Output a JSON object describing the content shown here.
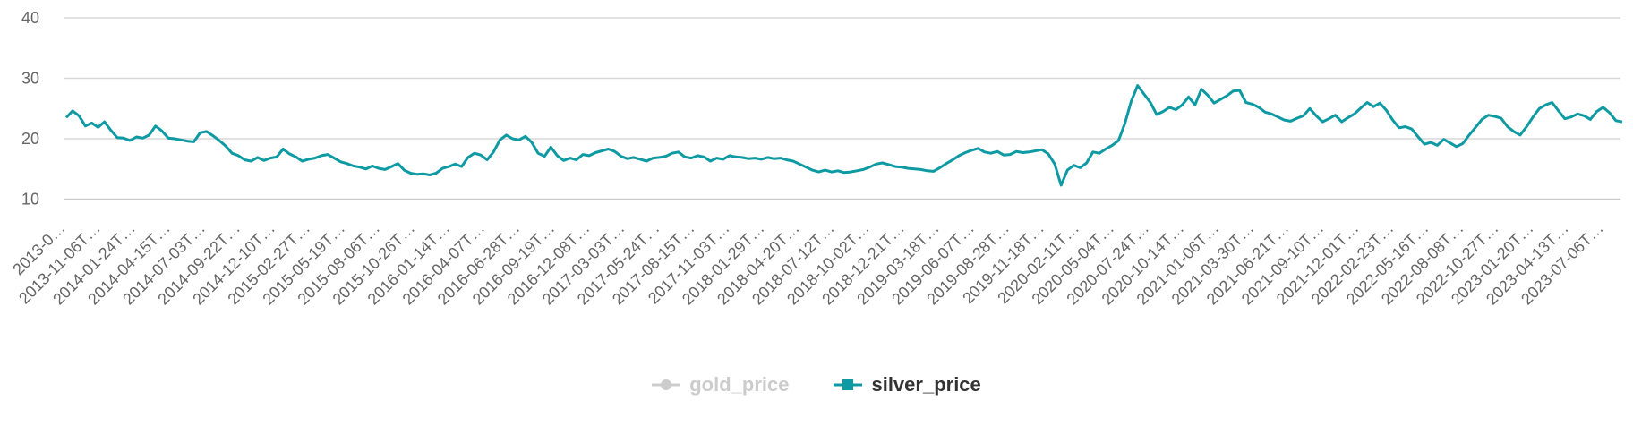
{
  "colors": {
    "background": "#ffffff",
    "grid": "#d8d8d8",
    "axis": "#cccccc",
    "tick_text": "#666666",
    "silver": "#0e9aa2",
    "gold_disabled": "#cccccc",
    "legend_text": "#333333"
  },
  "legend": {
    "gold_label": "gold_price",
    "silver_label": "silver_price"
  },
  "chart_data": {
    "type": "line",
    "title": "",
    "xlabel": "",
    "ylabel": "",
    "ylim": [
      8,
      40
    ],
    "yticks": [
      10,
      20,
      30,
      40
    ],
    "grid": true,
    "legend_placement": "bottom-center",
    "x_tick_labels": [
      "2013-0…",
      "2013-11-06T…",
      "2014-01-24T…",
      "2014-04-15T…",
      "2014-07-03T…",
      "2014-09-22T…",
      "2014-12-10T…",
      "2015-02-27T…",
      "2015-05-19T…",
      "2015-08-06T…",
      "2015-10-26T…",
      "2016-01-14T…",
      "2016-04-07T…",
      "2016-06-28T…",
      "2016-09-19T…",
      "2016-12-08T…",
      "2017-03-03T…",
      "2017-05-24T…",
      "2017-08-15T…",
      "2017-11-03T…",
      "2018-01-29T…",
      "2018-04-20T…",
      "2018-07-12T…",
      "2018-10-02T…",
      "2018-12-21T…",
      "2019-03-18T…",
      "2019-06-07T…",
      "2019-08-28T…",
      "2019-11-18T…",
      "2020-02-11T…",
      "2020-05-04T…",
      "2020-07-24T…",
      "2020-10-14T…",
      "2021-01-06T…",
      "2021-03-30T…",
      "2021-06-21T…",
      "2021-09-10T…",
      "2021-12-01T…",
      "2022-02-23T…",
      "2022-05-16T…",
      "2022-08-08T…",
      "2022-10-27T…",
      "2023-01-20T…",
      "2023-04-13T…",
      "2023-07-06T…"
    ],
    "series": [
      {
        "name": "gold_price",
        "hidden": true,
        "values": []
      },
      {
        "name": "silver_price",
        "hidden": false,
        "values": [
          23.5,
          24.6,
          23.8,
          22.1,
          22.6,
          21.9,
          22.8,
          21.4,
          20.2,
          20.1,
          19.7,
          20.3,
          20.1,
          20.6,
          22.1,
          21.3,
          20.1,
          20.0,
          19.8,
          19.6,
          19.5,
          21.0,
          21.2,
          20.5,
          19.7,
          18.8,
          17.6,
          17.2,
          16.5,
          16.3,
          16.9,
          16.4,
          16.8,
          17.0,
          18.3,
          17.5,
          17.0,
          16.3,
          16.6,
          16.8,
          17.2,
          17.4,
          16.8,
          16.2,
          15.9,
          15.5,
          15.3,
          15.0,
          15.5,
          15.1,
          14.9,
          15.4,
          15.9,
          14.8,
          14.3,
          14.1,
          14.2,
          14.0,
          14.3,
          15.1,
          15.4,
          15.8,
          15.4,
          16.9,
          17.6,
          17.3,
          16.5,
          17.8,
          19.8,
          20.6,
          20.0,
          19.8,
          20.4,
          19.4,
          17.6,
          17.1,
          18.6,
          17.2,
          16.4,
          16.8,
          16.5,
          17.4,
          17.2,
          17.7,
          18.0,
          18.3,
          17.9,
          17.1,
          16.7,
          16.9,
          16.6,
          16.3,
          16.8,
          16.9,
          17.1,
          17.6,
          17.8,
          17.0,
          16.8,
          17.2,
          17.0,
          16.3,
          16.8,
          16.6,
          17.2,
          17.0,
          16.9,
          16.7,
          16.8,
          16.6,
          16.9,
          16.7,
          16.8,
          16.5,
          16.3,
          15.8,
          15.3,
          14.8,
          14.5,
          14.8,
          14.5,
          14.7,
          14.4,
          14.5,
          14.7,
          14.9,
          15.3,
          15.8,
          16.0,
          15.7,
          15.4,
          15.3,
          15.1,
          15.0,
          14.9,
          14.7,
          14.6,
          15.2,
          15.9,
          16.5,
          17.2,
          17.7,
          18.1,
          18.4,
          17.8,
          17.6,
          17.9,
          17.3,
          17.4,
          17.9,
          17.7,
          17.8,
          18.0,
          18.2,
          17.5,
          15.8,
          12.3,
          14.8,
          15.6,
          15.2,
          16.0,
          17.8,
          17.6,
          18.3,
          18.9,
          19.7,
          22.5,
          26.2,
          28.8,
          27.4,
          26.0,
          24.0,
          24.5,
          25.2,
          24.8,
          25.6,
          26.9,
          25.6,
          28.2,
          27.2,
          25.9,
          26.5,
          27.1,
          27.9,
          28.0,
          26.0,
          25.7,
          25.2,
          24.4,
          24.1,
          23.6,
          23.1,
          22.9,
          23.4,
          23.8,
          25.0,
          23.8,
          22.8,
          23.3,
          23.9,
          22.8,
          23.5,
          24.1,
          25.1,
          26.0,
          25.3,
          25.9,
          24.7,
          23.1,
          21.8,
          22.0,
          21.6,
          20.3,
          19.1,
          19.4,
          18.9,
          19.9,
          19.3,
          18.7,
          19.2,
          20.6,
          21.9,
          23.2,
          23.9,
          23.7,
          23.4,
          22.0,
          21.2,
          20.6,
          22.0,
          23.6,
          25.0,
          25.6,
          26.0,
          24.6,
          23.3,
          23.6,
          24.1,
          23.8,
          23.2,
          24.5,
          25.2,
          24.3,
          23.0,
          22.8
        ]
      }
    ]
  }
}
